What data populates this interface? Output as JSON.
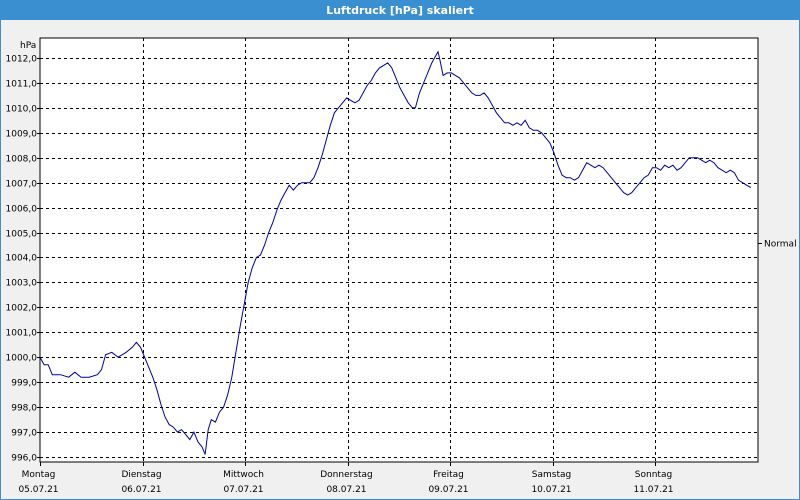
{
  "window": {
    "title": "Luftdruck [hPa] skaliert"
  },
  "colors": {
    "titlebar": "#3a8fd0",
    "line": "#0000a0",
    "plot_bg": "#ffffff",
    "grid": "#000000"
  },
  "chart_data": {
    "type": "line",
    "title": "Luftdruck [hPa] skaliert",
    "ylabel": "hPa",
    "ylim": [
      995.8,
      1012.8
    ],
    "yticks": [
      "996,0",
      "997,0",
      "998,0",
      "999,0",
      "1000,0",
      "1001,0",
      "1002,0",
      "1003,0",
      "1004,0",
      "1005,0",
      "1006,0",
      "1007,0",
      "1008,0",
      "1009,0",
      "1010,0",
      "1011,0",
      "1012,0"
    ],
    "ytick_values": [
      996,
      997,
      998,
      999,
      1000,
      1001,
      1002,
      1003,
      1004,
      1005,
      1006,
      1007,
      1008,
      1009,
      1010,
      1011,
      1012
    ],
    "xlim": [
      0,
      7
    ],
    "x_unit": "days",
    "days": [
      {
        "day": "Montag",
        "date": "05.07.21"
      },
      {
        "day": "Dienstag",
        "date": "06.07.21"
      },
      {
        "day": "Mittwoch",
        "date": "07.07.21"
      },
      {
        "day": "Donnerstag",
        "date": "08.07.21"
      },
      {
        "day": "Freitag",
        "date": "09.07.21"
      },
      {
        "day": "Samstag",
        "date": "10.07.21"
      },
      {
        "day": "Sonntag",
        "date": "11.07.21"
      }
    ],
    "grid": true,
    "legend_label": "Normal",
    "reference_value": 1004.6,
    "series": [
      {
        "points": [
          [
            0.0,
            1000.0
          ],
          [
            0.04,
            999.7
          ],
          [
            0.08,
            999.7
          ],
          [
            0.12,
            999.3
          ],
          [
            0.2,
            999.3
          ],
          [
            0.28,
            999.2
          ],
          [
            0.34,
            999.4
          ],
          [
            0.4,
            999.2
          ],
          [
            0.48,
            999.2
          ],
          [
            0.56,
            999.3
          ],
          [
            0.6,
            999.5
          ],
          [
            0.64,
            1000.1
          ],
          [
            0.7,
            1000.2
          ],
          [
            0.76,
            1000.0
          ],
          [
            0.84,
            1000.2
          ],
          [
            0.9,
            1000.4
          ],
          [
            0.94,
            1000.6
          ],
          [
            0.98,
            1000.4
          ],
          [
            1.02,
            1000.0
          ],
          [
            1.06,
            999.6
          ],
          [
            1.1,
            999.2
          ],
          [
            1.14,
            998.7
          ],
          [
            1.18,
            998.1
          ],
          [
            1.22,
            997.6
          ],
          [
            1.26,
            997.3
          ],
          [
            1.3,
            997.2
          ],
          [
            1.34,
            997.0
          ],
          [
            1.38,
            997.1
          ],
          [
            1.42,
            996.9
          ],
          [
            1.46,
            996.7
          ],
          [
            1.5,
            997.0
          ],
          [
            1.54,
            996.6
          ],
          [
            1.58,
            996.4
          ],
          [
            1.61,
            996.1
          ],
          [
            1.64,
            997.1
          ],
          [
            1.67,
            997.5
          ],
          [
            1.71,
            997.4
          ],
          [
            1.75,
            997.8
          ],
          [
            1.79,
            998.0
          ],
          [
            1.83,
            998.5
          ],
          [
            1.87,
            999.2
          ],
          [
            1.91,
            1000.2
          ],
          [
            1.95,
            1001.2
          ],
          [
            1.99,
            1002.1
          ],
          [
            2.03,
            1003.0
          ],
          [
            2.07,
            1003.6
          ],
          [
            2.11,
            1004.0
          ],
          [
            2.15,
            1004.1
          ],
          [
            2.19,
            1004.5
          ],
          [
            2.23,
            1005.0
          ],
          [
            2.27,
            1005.4
          ],
          [
            2.31,
            1005.9
          ],
          [
            2.35,
            1006.3
          ],
          [
            2.39,
            1006.6
          ],
          [
            2.43,
            1006.9
          ],
          [
            2.47,
            1006.7
          ],
          [
            2.51,
            1006.9
          ],
          [
            2.55,
            1007.0
          ],
          [
            2.59,
            1007.0
          ],
          [
            2.63,
            1007.0
          ],
          [
            2.67,
            1007.2
          ],
          [
            2.71,
            1007.6
          ],
          [
            2.75,
            1008.1
          ],
          [
            2.79,
            1008.7
          ],
          [
            2.83,
            1009.3
          ],
          [
            2.87,
            1009.8
          ],
          [
            2.91,
            1010.0
          ],
          [
            2.95,
            1010.2
          ],
          [
            2.99,
            1010.4
          ],
          [
            3.03,
            1010.3
          ],
          [
            3.07,
            1010.2
          ],
          [
            3.11,
            1010.3
          ],
          [
            3.15,
            1010.6
          ],
          [
            3.19,
            1010.9
          ],
          [
            3.23,
            1011.1
          ],
          [
            3.27,
            1011.4
          ],
          [
            3.31,
            1011.6
          ],
          [
            3.35,
            1011.7
          ],
          [
            3.39,
            1011.8
          ],
          [
            3.43,
            1011.6
          ],
          [
            3.47,
            1011.2
          ],
          [
            3.51,
            1010.8
          ],
          [
            3.55,
            1010.5
          ],
          [
            3.59,
            1010.2
          ],
          [
            3.63,
            1010.0
          ],
          [
            3.66,
            1010.0
          ],
          [
            3.7,
            1010.6
          ],
          [
            3.74,
            1011.0
          ],
          [
            3.78,
            1011.4
          ],
          [
            3.82,
            1011.8
          ],
          [
            3.86,
            1012.1
          ],
          [
            3.88,
            1012.25
          ],
          [
            3.9,
            1011.9
          ],
          [
            3.93,
            1011.3
          ],
          [
            3.97,
            1011.4
          ],
          [
            4.01,
            1011.4
          ],
          [
            4.05,
            1011.3
          ],
          [
            4.09,
            1011.2
          ],
          [
            4.13,
            1011.0
          ],
          [
            4.17,
            1010.8
          ],
          [
            4.21,
            1010.6
          ],
          [
            4.25,
            1010.5
          ],
          [
            4.29,
            1010.5
          ],
          [
            4.33,
            1010.6
          ],
          [
            4.37,
            1010.4
          ],
          [
            4.41,
            1010.1
          ],
          [
            4.45,
            1009.8
          ],
          [
            4.49,
            1009.6
          ],
          [
            4.53,
            1009.4
          ],
          [
            4.57,
            1009.4
          ],
          [
            4.61,
            1009.3
          ],
          [
            4.65,
            1009.4
          ],
          [
            4.69,
            1009.3
          ],
          [
            4.73,
            1009.5
          ],
          [
            4.77,
            1009.2
          ],
          [
            4.81,
            1009.1
          ],
          [
            4.85,
            1009.1
          ],
          [
            4.89,
            1009.0
          ],
          [
            4.93,
            1008.8
          ],
          [
            4.97,
            1008.6
          ],
          [
            5.01,
            1008.2
          ],
          [
            5.05,
            1007.7
          ],
          [
            5.09,
            1007.3
          ],
          [
            5.13,
            1007.2
          ],
          [
            5.17,
            1007.2
          ],
          [
            5.21,
            1007.1
          ],
          [
            5.25,
            1007.2
          ],
          [
            5.29,
            1007.5
          ],
          [
            5.33,
            1007.8
          ],
          [
            5.37,
            1007.7
          ],
          [
            5.41,
            1007.6
          ],
          [
            5.45,
            1007.7
          ],
          [
            5.49,
            1007.6
          ],
          [
            5.53,
            1007.4
          ],
          [
            5.57,
            1007.2
          ],
          [
            5.61,
            1007.0
          ],
          [
            5.65,
            1006.8
          ],
          [
            5.69,
            1006.6
          ],
          [
            5.73,
            1006.5
          ],
          [
            5.77,
            1006.6
          ],
          [
            5.81,
            1006.8
          ],
          [
            5.85,
            1007.0
          ],
          [
            5.89,
            1007.2
          ],
          [
            5.93,
            1007.3
          ],
          [
            5.97,
            1007.6
          ],
          [
            6.01,
            1007.6
          ],
          [
            6.05,
            1007.5
          ],
          [
            6.09,
            1007.7
          ],
          [
            6.13,
            1007.6
          ],
          [
            6.17,
            1007.7
          ],
          [
            6.21,
            1007.5
          ],
          [
            6.25,
            1007.6
          ],
          [
            6.29,
            1007.8
          ],
          [
            6.33,
            1008.0
          ],
          [
            6.37,
            1008.0
          ],
          [
            6.41,
            1008.0
          ],
          [
            6.45,
            1007.9
          ],
          [
            6.49,
            1007.8
          ],
          [
            6.53,
            1007.9
          ],
          [
            6.57,
            1007.8
          ],
          [
            6.61,
            1007.6
          ],
          [
            6.65,
            1007.5
          ],
          [
            6.69,
            1007.4
          ],
          [
            6.73,
            1007.5
          ],
          [
            6.77,
            1007.4
          ],
          [
            6.81,
            1007.1
          ],
          [
            6.85,
            1007.0
          ],
          [
            6.89,
            1006.9
          ],
          [
            6.93,
            1006.8
          ]
        ]
      }
    ]
  }
}
